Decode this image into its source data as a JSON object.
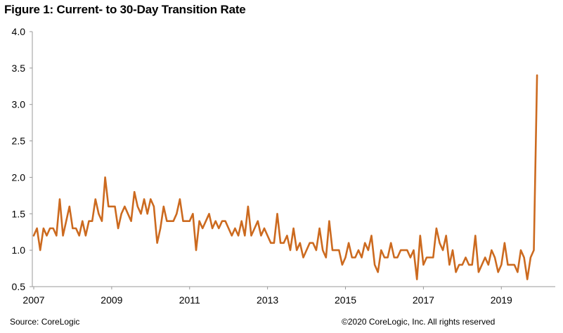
{
  "title": "Figure 1: Current- to 30-Day  Transition Rate",
  "source": "Source: CoreLogic",
  "copyright": "©2020 CoreLogic, Inc. All rights reserved",
  "colors": {
    "line": "#cc6a1f",
    "axis": "#999999",
    "text": "#000000"
  },
  "chart_data": {
    "type": "line",
    "title": "Figure 1: Current- to 30-Day  Transition Rate",
    "xlabel": "",
    "ylabel": "",
    "ylim": [
      0.5,
      4.0
    ],
    "yticks": [
      "0.5",
      "1.0",
      "1.5",
      "2.0",
      "2.5",
      "3.0",
      "3.5",
      "4.0"
    ],
    "xticks": [
      "2007",
      "2009",
      "2011",
      "2013",
      "2015",
      "2017",
      "2019"
    ],
    "x_start": "2007-01",
    "frequency": "monthly",
    "grid": false,
    "series": [
      {
        "values": [
          1.2,
          1.3,
          1.0,
          1.3,
          1.2,
          1.3,
          1.3,
          1.2,
          1.7,
          1.2,
          1.4,
          1.6,
          1.3,
          1.3,
          1.2,
          1.4,
          1.2,
          1.4,
          1.4,
          1.7,
          1.5,
          1.4,
          2.0,
          1.6,
          1.6,
          1.6,
          1.3,
          1.5,
          1.6,
          1.5,
          1.4,
          1.8,
          1.6,
          1.5,
          1.7,
          1.5,
          1.7,
          1.6,
          1.1,
          1.3,
          1.6,
          1.4,
          1.4,
          1.4,
          1.5,
          1.7,
          1.4,
          1.4,
          1.4,
          1.5,
          1.0,
          1.4,
          1.3,
          1.4,
          1.5,
          1.3,
          1.4,
          1.3,
          1.4,
          1.4,
          1.3,
          1.2,
          1.3,
          1.2,
          1.4,
          1.2,
          1.6,
          1.2,
          1.3,
          1.4,
          1.2,
          1.3,
          1.2,
          1.1,
          1.1,
          1.5,
          1.1,
          1.1,
          1.2,
          1.0,
          1.3,
          1.0,
          1.1,
          0.9,
          1.0,
          1.1,
          1.1,
          1.0,
          1.3,
          1.0,
          0.9,
          1.4,
          1.0,
          1.0,
          1.0,
          0.8,
          0.9,
          1.1,
          0.9,
          0.9,
          1.0,
          0.9,
          1.1,
          1.0,
          1.2,
          0.8,
          0.7,
          1.0,
          0.9,
          0.9,
          1.1,
          0.9,
          0.9,
          1.0,
          1.0,
          1.0,
          0.9,
          1.0,
          0.6,
          1.2,
          0.8,
          0.9,
          0.9,
          0.9,
          1.3,
          1.1,
          1.0,
          1.2,
          0.8,
          1.0,
          0.7,
          0.8,
          0.8,
          0.9,
          0.8,
          0.8,
          1.2,
          0.7,
          0.8,
          0.9,
          0.8,
          1.0,
          0.9,
          0.7,
          0.8,
          1.1,
          0.8,
          0.8,
          0.8,
          0.7,
          1.0,
          0.9,
          0.6,
          0.9,
          1.0,
          3.4
        ]
      }
    ]
  }
}
